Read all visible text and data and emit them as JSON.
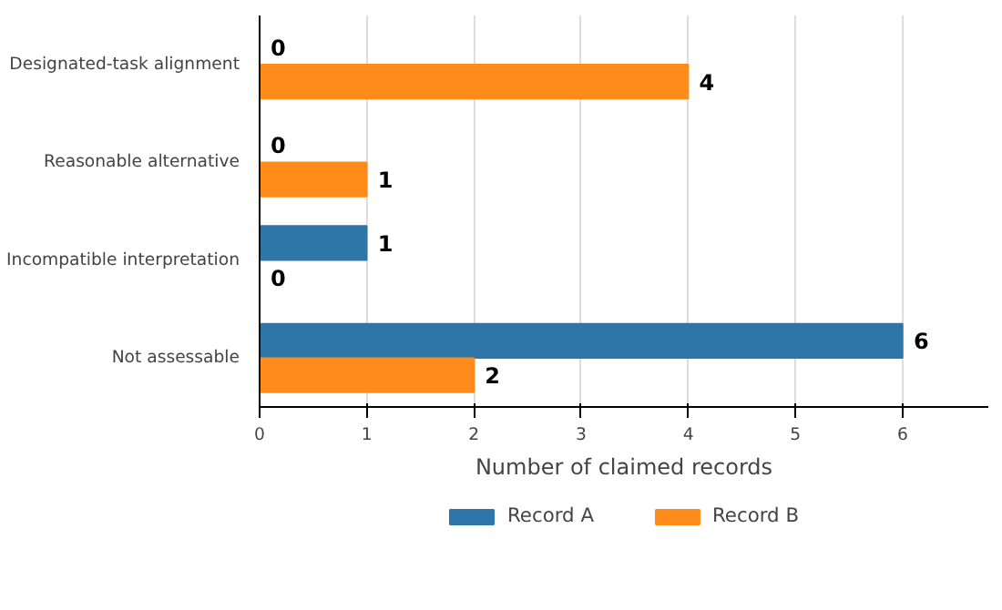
{
  "chart_data": {
    "type": "bar",
    "orientation": "horizontal",
    "xlabel": "Number of claimed records",
    "categories": [
      "Designated-task alignment",
      "Reasonable alternative",
      "Incompatible interpretation",
      "Not assessable"
    ],
    "series": [
      {
        "name": "Record A",
        "color": "#2e75a8",
        "values": [
          0,
          0,
          1,
          6
        ]
      },
      {
        "name": "Record B",
        "color": "#ff8c1a",
        "values": [
          4,
          1,
          0,
          2
        ]
      }
    ],
    "xlim": [
      0,
      6.8
    ],
    "xticks": [
      0,
      1,
      2,
      3,
      4,
      5,
      6
    ],
    "grid": "x",
    "legend": "bottom",
    "data_labels": true
  }
}
